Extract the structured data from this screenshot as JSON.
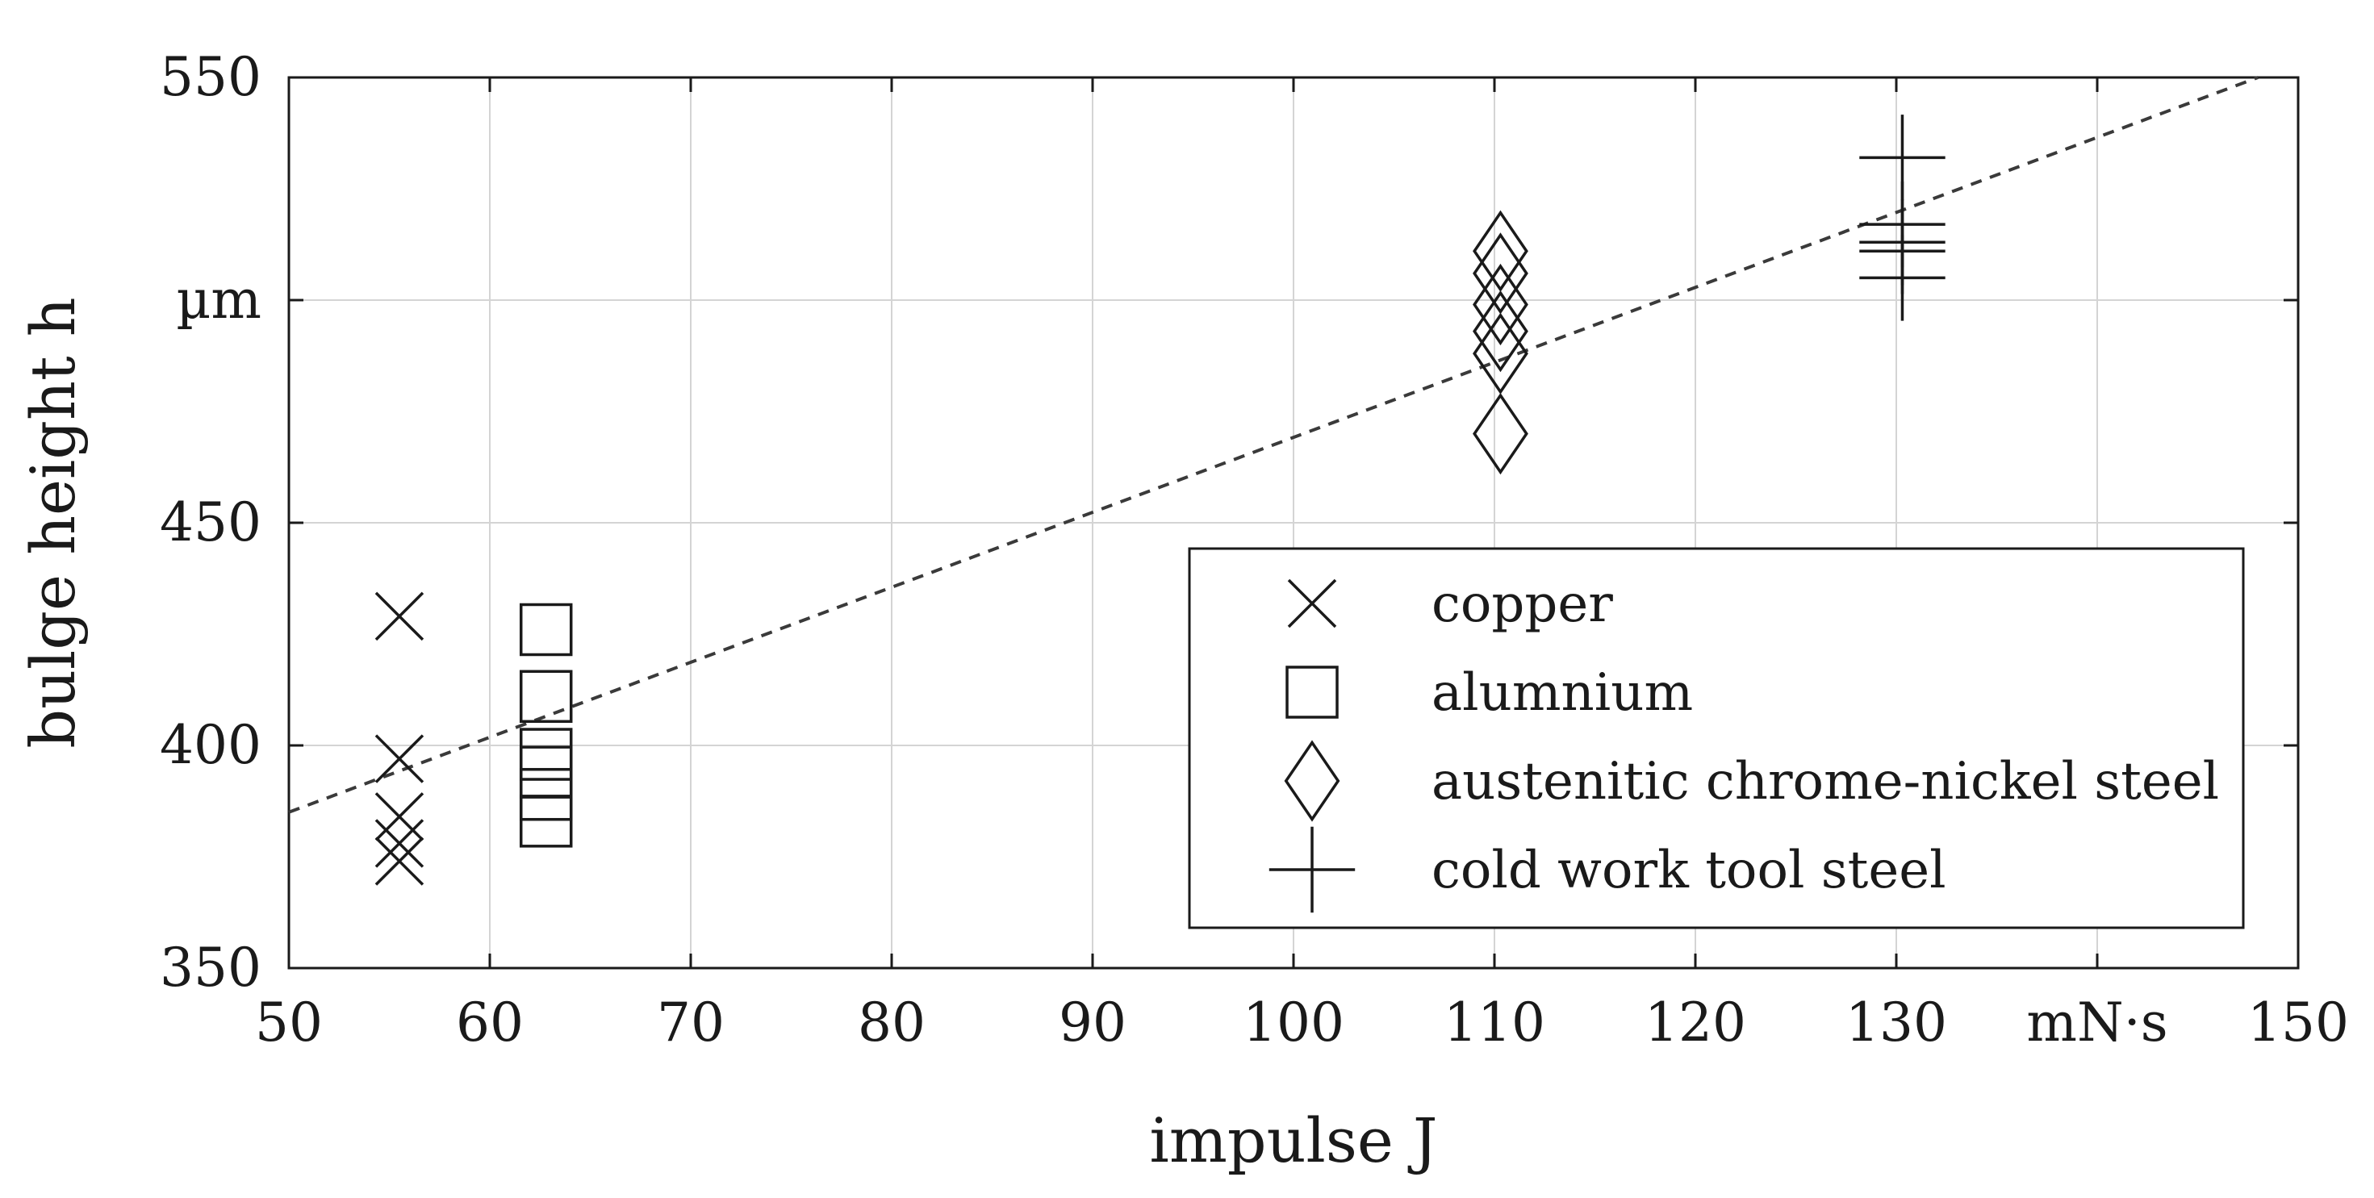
{
  "chart_data": {
    "type": "scatter",
    "xlabel": "impulse J",
    "ylabel": "bulge height h",
    "x_unit": "mN·s",
    "y_unit": "µm",
    "xlim": [
      50,
      150
    ],
    "ylim": [
      350,
      550
    ],
    "x_ticks": [
      50,
      60,
      70,
      80,
      90,
      100,
      110,
      120,
      130,
      150
    ],
    "y_ticks": [
      350,
      400,
      450,
      550
    ],
    "grid": true,
    "legend_position": "bottom-right",
    "series": [
      {
        "name": "copper",
        "marker": "x",
        "points": [
          [
            55.5,
            429
          ],
          [
            55.5,
            397
          ],
          [
            55.5,
            384
          ],
          [
            55.5,
            378
          ],
          [
            55.5,
            374
          ]
        ]
      },
      {
        "name": "alumnium",
        "marker": "square",
        "points": [
          [
            62.8,
            426
          ],
          [
            62.8,
            411
          ],
          [
            62.8,
            398
          ],
          [
            62.8,
            394
          ],
          [
            62.8,
            389
          ],
          [
            62.8,
            383
          ]
        ]
      },
      {
        "name": "austenitic chrome-nickel steel",
        "marker": "diamond",
        "points": [
          [
            110.3,
            511
          ],
          [
            110.3,
            506
          ],
          [
            110.3,
            499
          ],
          [
            110.3,
            493
          ],
          [
            110.3,
            488
          ],
          [
            110.3,
            470
          ]
        ]
      },
      {
        "name": "cold work tool steel",
        "marker": "plus",
        "points": [
          [
            130.3,
            532
          ],
          [
            130.3,
            517
          ],
          [
            130.3,
            513
          ],
          [
            130.3,
            511
          ],
          [
            130.3,
            505
          ]
        ]
      }
    ],
    "fit_line": {
      "style": "dashed",
      "points": [
        [
          50,
          385
        ],
        [
          148,
          550
        ]
      ]
    }
  }
}
